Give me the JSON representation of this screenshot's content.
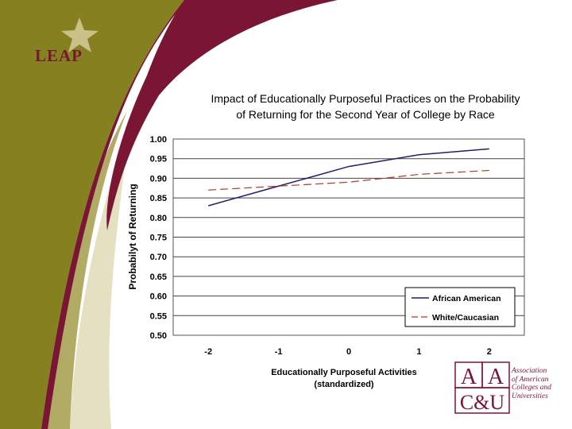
{
  "logo": {
    "leap_text": "LEAP",
    "star_color": "#c9c08a"
  },
  "branding": {
    "aacu_mark_line1": [
      "A",
      "A"
    ],
    "aacu_mark_line2": "C&U",
    "aacu_name_lines": [
      "Association",
      "of American",
      "Colleges and",
      "Universities"
    ],
    "brand_color": "#7a1634",
    "olive_color": "#858020"
  },
  "chart_data": {
    "type": "line",
    "title_lines": [
      "Impact of Educationally Purposeful Practices on the Probability",
      "of Returning for the Second Year of College by Race"
    ],
    "xlabel_lines": [
      "Educationally Purposeful Activities",
      "(standardized)"
    ],
    "ylabel": "Probabilyt of Returning",
    "x": [
      -2,
      -1,
      0,
      1,
      2
    ],
    "x_tick_labels": [
      "-2",
      "-1",
      "0",
      "1",
      "2"
    ],
    "ylim": [
      0.5,
      1.0
    ],
    "y_ticks": [
      "0.50",
      "0.55",
      "0.60",
      "0.65",
      "0.70",
      "0.75",
      "0.80",
      "0.85",
      "0.90",
      "0.95",
      "1.00"
    ],
    "grid": true,
    "legend_position": "bottom-right",
    "series": [
      {
        "name": "African American",
        "values": [
          0.83,
          0.88,
          0.93,
          0.96,
          0.975
        ],
        "color": "#1f1f6e",
        "dash": "solid"
      },
      {
        "name": "White/Caucasian",
        "values": [
          0.87,
          0.88,
          0.89,
          0.91,
          0.92
        ],
        "color": "#b03a2e",
        "dash": "dashed"
      }
    ]
  }
}
